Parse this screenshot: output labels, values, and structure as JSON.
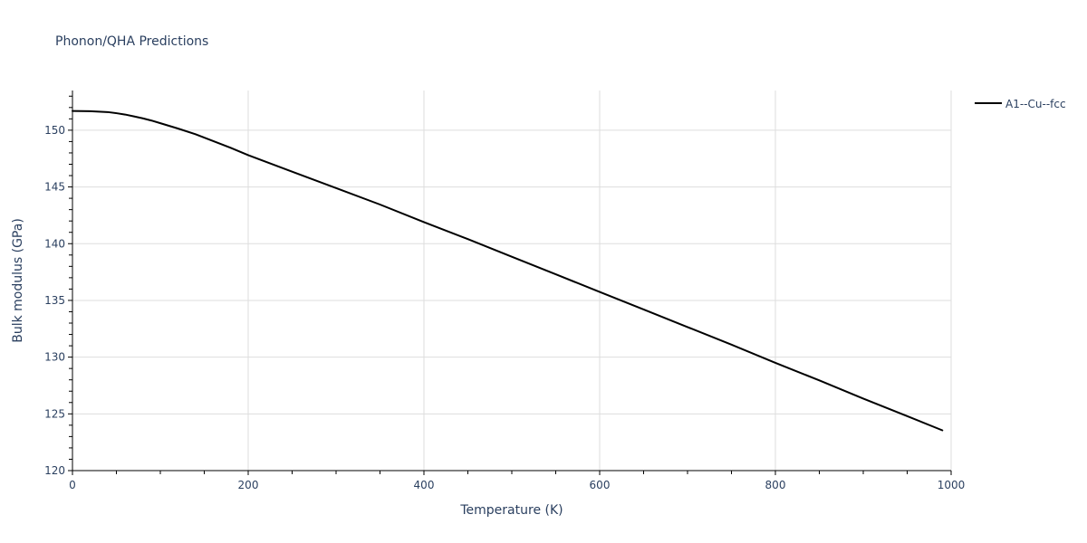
{
  "chart_data": {
    "type": "line",
    "title": "Phonon/QHA Predictions",
    "xlabel": "Temperature (K)",
    "ylabel": "Bulk modulus (GPa)",
    "xlim": [
      0,
      1000
    ],
    "ylim": [
      120,
      153.5
    ],
    "grid": true,
    "legend_position": "top-right",
    "x_ticks": [
      0,
      200,
      400,
      600,
      800,
      1000
    ],
    "y_ticks": [
      120,
      125,
      130,
      135,
      140,
      145,
      150
    ],
    "x_tick_labels": [
      "0",
      "200",
      "400",
      "600",
      "800",
      "1000"
    ],
    "y_tick_labels": [
      "120",
      "125",
      "130",
      "135",
      "140",
      "145",
      "150"
    ],
    "x_minor_step": 50,
    "y_minor_step": 1,
    "series": [
      {
        "name": "A1--Cu--fcc",
        "color": "#000000",
        "x": [
          0,
          20,
          40,
          50,
          60,
          70,
          80,
          90,
          100,
          120,
          140,
          160,
          180,
          200,
          250,
          300,
          350,
          400,
          450,
          500,
          550,
          600,
          650,
          700,
          750,
          800,
          850,
          900,
          950,
          990
        ],
        "y": [
          151.7,
          151.68,
          151.6,
          151.5,
          151.38,
          151.22,
          151.05,
          150.85,
          150.62,
          150.15,
          149.65,
          149.05,
          148.45,
          147.8,
          146.35,
          144.9,
          143.45,
          141.9,
          140.4,
          138.85,
          137.3,
          135.75,
          134.2,
          132.65,
          131.1,
          129.5,
          127.95,
          126.35,
          124.8,
          123.55
        ]
      }
    ]
  }
}
